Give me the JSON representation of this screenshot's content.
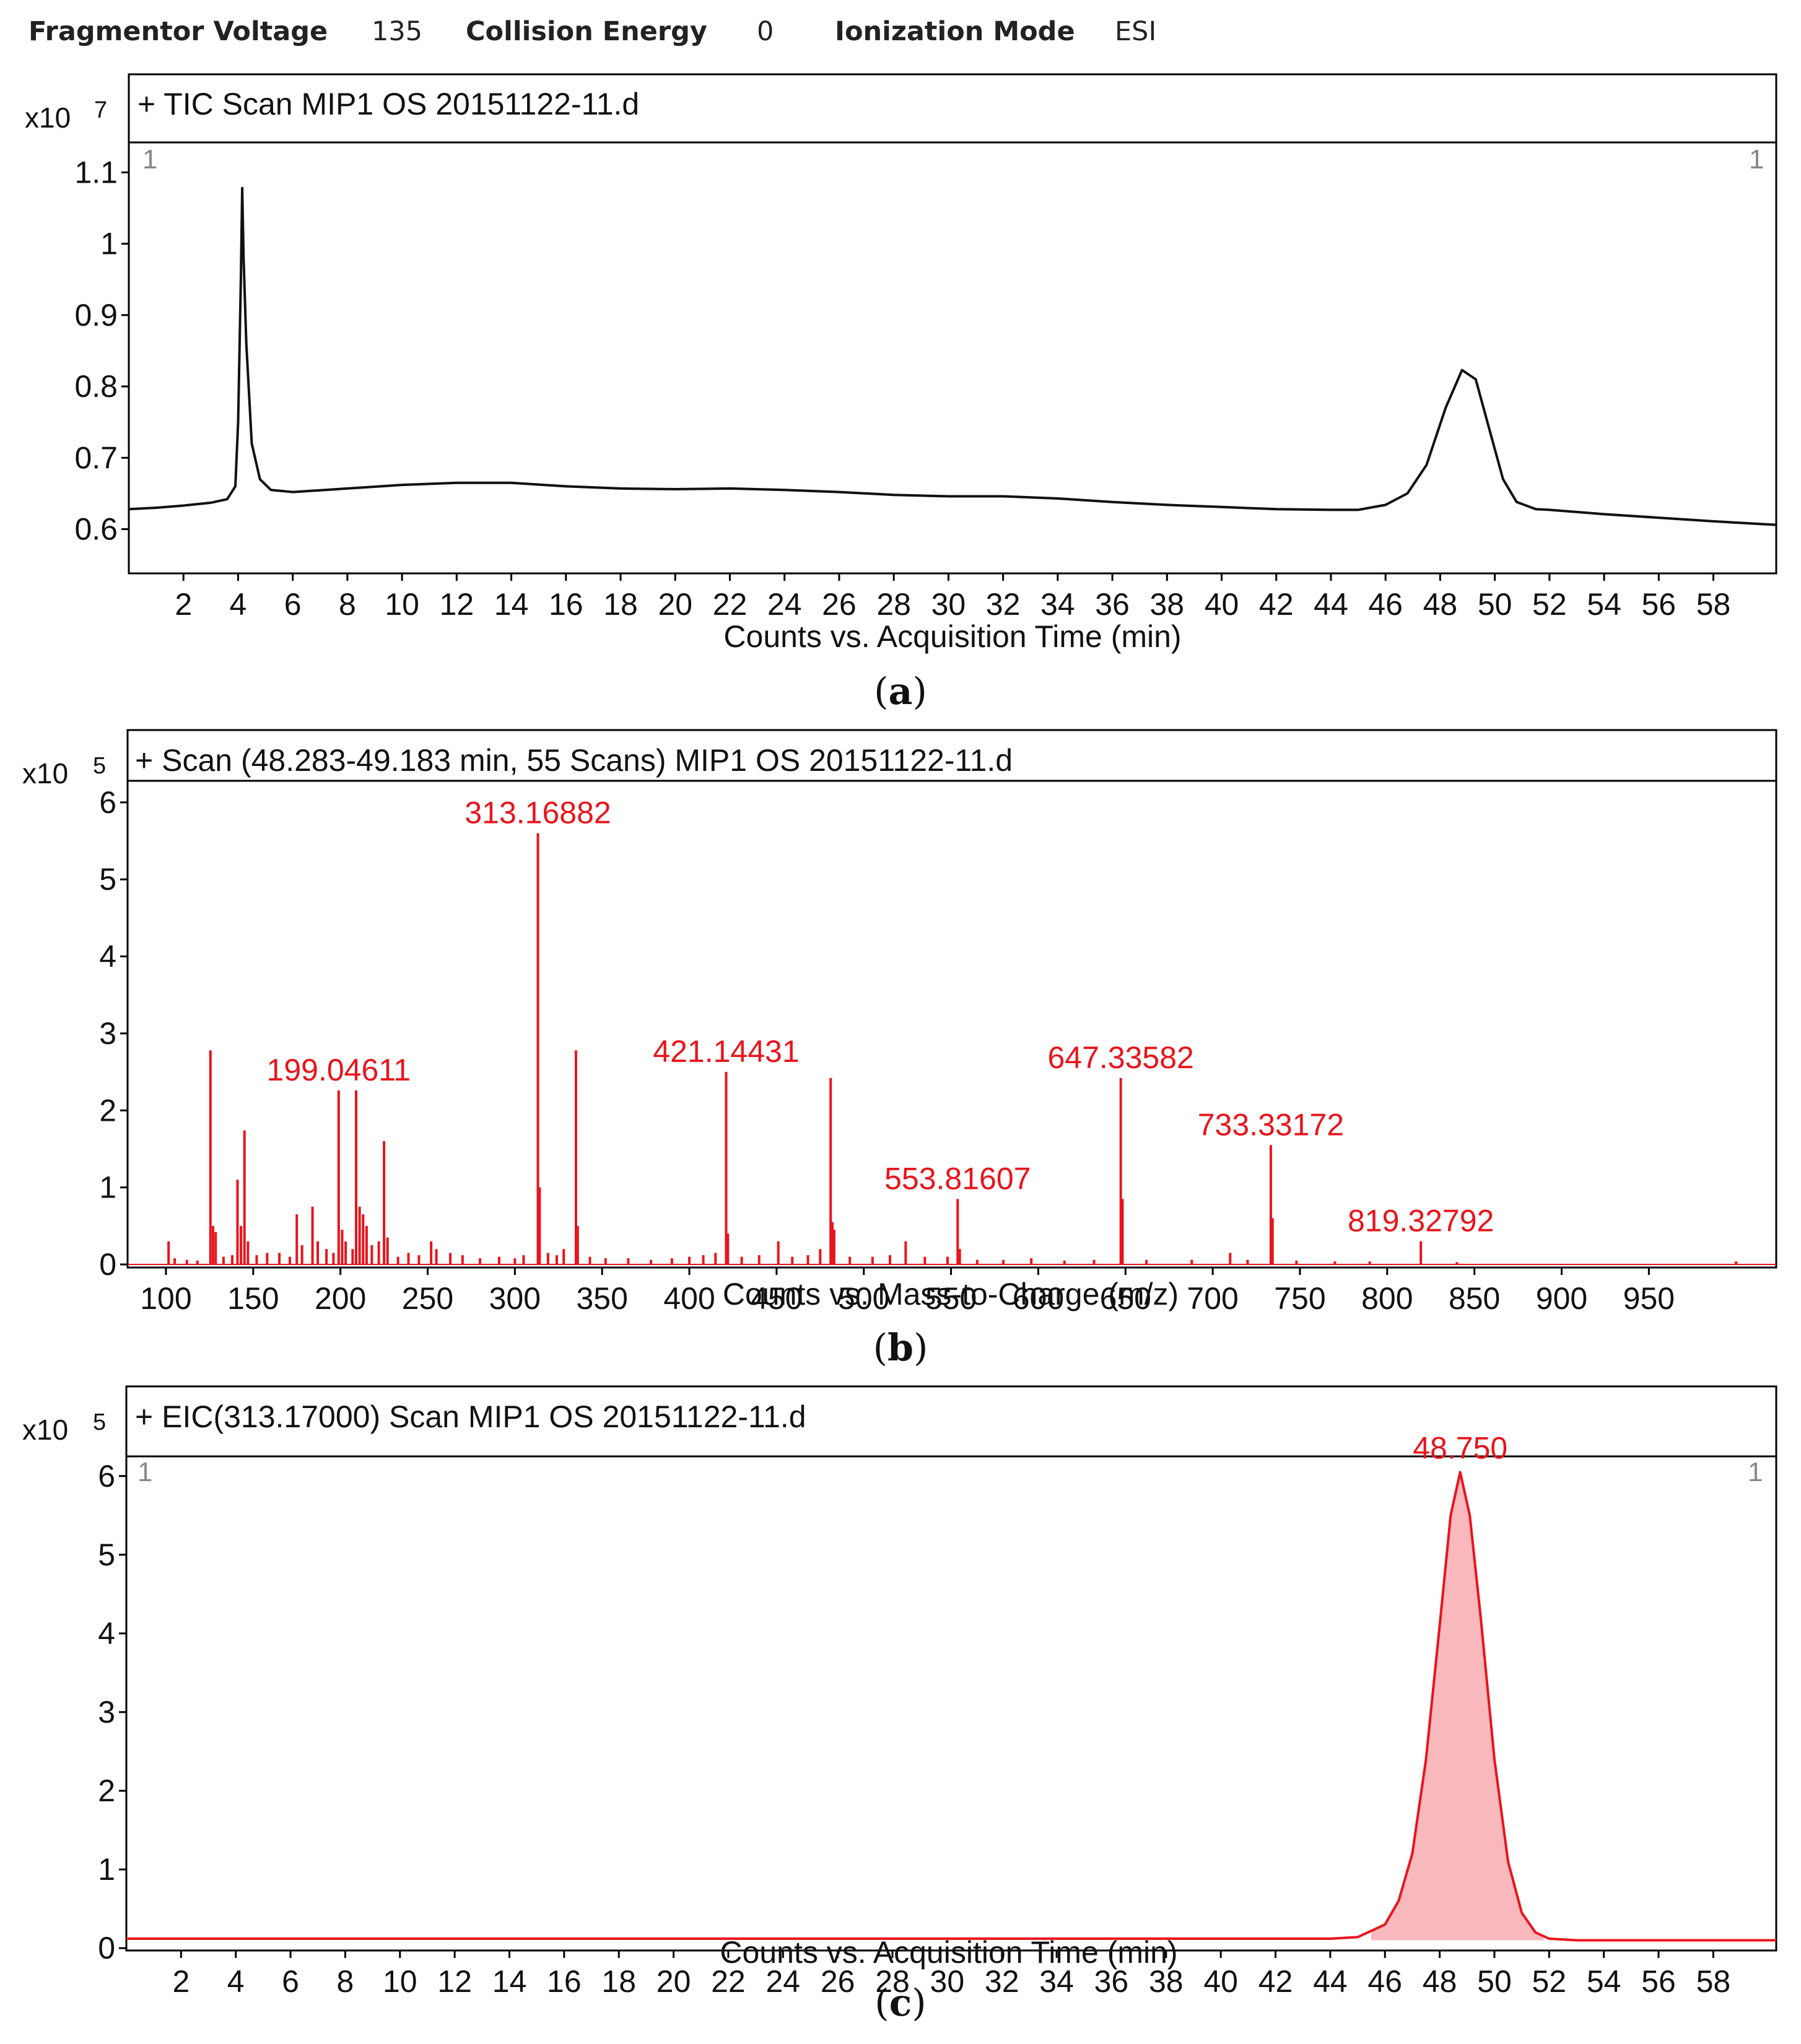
{
  "header": {
    "fragmentor_label": "Fragmentor Voltage",
    "fragmentor_value": "135",
    "collision_label": "Collision Energy",
    "collision_value": "0",
    "ionization_label": "Ionization Mode",
    "ionization_value": "ESI"
  },
  "captions": {
    "a": "a",
    "b": "b",
    "c": "c"
  },
  "colors": {
    "tic_line": "#111111",
    "spectrum": "#e8141c",
    "eic_fill": "#f8b8bc",
    "eic_line": "#e8141c"
  },
  "chart_data": [
    {
      "id": "a",
      "type": "line",
      "title": "+ TIC Scan MIP1 OS 20151122-11.d",
      "multiplier_base": "x10",
      "multiplier_exp": "7",
      "xlabel": "Counts vs. Acquisition Time (min)",
      "ylabel": "",
      "panel_index": "1",
      "xlim": [
        0,
        60.3
      ],
      "ylim": [
        0.538,
        1.142
      ],
      "x_ticks": [
        "2",
        "4",
        "6",
        "8",
        "10",
        "12",
        "14",
        "16",
        "18",
        "20",
        "22",
        "24",
        "26",
        "28",
        "30",
        "32",
        "34",
        "36",
        "38",
        "40",
        "42",
        "44",
        "46",
        "48",
        "50",
        "52",
        "54",
        "56",
        "58"
      ],
      "y_ticks": [
        "0.6",
        "0.7",
        "0.8",
        "0.9",
        "1",
        "1.1"
      ],
      "x": [
        0,
        1,
        2,
        3,
        3.6,
        3.9,
        4.0,
        4.1,
        4.15,
        4.2,
        4.3,
        4.5,
        4.8,
        5.2,
        6,
        8,
        10,
        12,
        14,
        16,
        18,
        20,
        22,
        24,
        26,
        28,
        30,
        32,
        34,
        36,
        38,
        40,
        42,
        44,
        45,
        46,
        46.8,
        47.5,
        48.2,
        48.8,
        49.3,
        49.8,
        50.3,
        50.8,
        51.5,
        52,
        54,
        56,
        58,
        60.3
      ],
      "y": [
        0.628,
        0.63,
        0.633,
        0.637,
        0.642,
        0.66,
        0.75,
        0.95,
        1.078,
        0.98,
        0.86,
        0.72,
        0.67,
        0.655,
        0.652,
        0.657,
        0.662,
        0.665,
        0.665,
        0.66,
        0.657,
        0.656,
        0.657,
        0.655,
        0.652,
        0.648,
        0.646,
        0.646,
        0.643,
        0.638,
        0.634,
        0.631,
        0.628,
        0.627,
        0.627,
        0.634,
        0.65,
        0.69,
        0.77,
        0.823,
        0.81,
        0.74,
        0.67,
        0.638,
        0.628,
        0.627,
        0.621,
        0.616,
        0.611,
        0.606
      ]
    },
    {
      "id": "b",
      "type": "bar",
      "title": "+ Scan (48.283-49.183 min, 55 Scans) MIP1 OS 20151122-11.d",
      "multiplier_base": "x10",
      "multiplier_exp": "5",
      "xlabel": "Counts vs. Mass-to-Charge (m/z)",
      "ylabel": "",
      "xlim": [
        78,
        1023
      ],
      "ylim": [
        -0.04,
        6.28
      ],
      "x_ticks": [
        "100",
        "150",
        "200",
        "250",
        "300",
        "350",
        "400",
        "450",
        "500",
        "550",
        "600",
        "650",
        "700",
        "750",
        "800",
        "850",
        "900",
        "950"
      ],
      "y_ticks": [
        "0",
        "1",
        "2",
        "3",
        "4",
        "5",
        "6"
      ],
      "peaks": [
        {
          "mz": 101.5,
          "value": 0.3
        },
        {
          "mz": 105,
          "value": 0.08
        },
        {
          "mz": 112,
          "value": 0.06
        },
        {
          "mz": 118,
          "value": 0.05
        },
        {
          "mz": 125.5,
          "value": 2.78
        },
        {
          "mz": 127,
          "value": 0.5
        },
        {
          "mz": 128.5,
          "value": 0.42
        },
        {
          "mz": 133,
          "value": 0.1
        },
        {
          "mz": 138,
          "value": 0.12
        },
        {
          "mz": 141,
          "value": 1.1
        },
        {
          "mz": 143,
          "value": 0.5
        },
        {
          "mz": 145,
          "value": 1.74
        },
        {
          "mz": 147,
          "value": 0.3
        },
        {
          "mz": 152,
          "value": 0.12
        },
        {
          "mz": 158,
          "value": 0.15
        },
        {
          "mz": 165,
          "value": 0.15
        },
        {
          "mz": 171,
          "value": 0.1
        },
        {
          "mz": 175,
          "value": 0.65
        },
        {
          "mz": 178,
          "value": 0.25
        },
        {
          "mz": 184,
          "value": 0.75
        },
        {
          "mz": 187,
          "value": 0.3
        },
        {
          "mz": 192,
          "value": 0.2
        },
        {
          "mz": 196,
          "value": 0.15
        },
        {
          "mz": 199,
          "value": 2.26
        },
        {
          "mz": 201,
          "value": 0.45
        },
        {
          "mz": 203,
          "value": 0.3
        },
        {
          "mz": 207,
          "value": 0.2
        },
        {
          "mz": 209,
          "value": 2.26
        },
        {
          "mz": 211,
          "value": 0.75
        },
        {
          "mz": 213,
          "value": 0.65
        },
        {
          "mz": 215,
          "value": 0.5
        },
        {
          "mz": 218,
          "value": 0.25
        },
        {
          "mz": 222,
          "value": 0.3
        },
        {
          "mz": 225,
          "value": 1.6
        },
        {
          "mz": 227,
          "value": 0.35
        },
        {
          "mz": 233,
          "value": 0.1
        },
        {
          "mz": 239,
          "value": 0.15
        },
        {
          "mz": 245,
          "value": 0.12
        },
        {
          "mz": 252,
          "value": 0.3
        },
        {
          "mz": 255,
          "value": 0.2
        },
        {
          "mz": 263,
          "value": 0.15
        },
        {
          "mz": 270,
          "value": 0.12
        },
        {
          "mz": 280,
          "value": 0.08
        },
        {
          "mz": 291,
          "value": 0.1
        },
        {
          "mz": 300,
          "value": 0.08
        },
        {
          "mz": 305,
          "value": 0.12
        },
        {
          "mz": 313.2,
          "value": 5.6
        },
        {
          "mz": 314.2,
          "value": 1.0
        },
        {
          "mz": 319,
          "value": 0.15
        },
        {
          "mz": 324,
          "value": 0.12
        },
        {
          "mz": 328,
          "value": 0.2
        },
        {
          "mz": 335,
          "value": 2.78
        },
        {
          "mz": 336,
          "value": 0.5
        },
        {
          "mz": 343,
          "value": 0.1
        },
        {
          "mz": 352,
          "value": 0.08
        },
        {
          "mz": 365,
          "value": 0.08
        },
        {
          "mz": 378,
          "value": 0.06
        },
        {
          "mz": 390,
          "value": 0.08
        },
        {
          "mz": 400,
          "value": 0.1
        },
        {
          "mz": 408,
          "value": 0.12
        },
        {
          "mz": 415,
          "value": 0.15
        },
        {
          "mz": 421.1,
          "value": 2.5
        },
        {
          "mz": 422.1,
          "value": 0.4
        },
        {
          "mz": 430,
          "value": 0.1
        },
        {
          "mz": 440,
          "value": 0.12
        },
        {
          "mz": 451,
          "value": 0.3
        },
        {
          "mz": 459,
          "value": 0.1
        },
        {
          "mz": 468,
          "value": 0.12
        },
        {
          "mz": 475,
          "value": 0.2
        },
        {
          "mz": 481,
          "value": 2.42
        },
        {
          "mz": 482,
          "value": 0.55
        },
        {
          "mz": 483,
          "value": 0.45
        },
        {
          "mz": 492,
          "value": 0.1
        },
        {
          "mz": 505,
          "value": 0.1
        },
        {
          "mz": 515,
          "value": 0.12
        },
        {
          "mz": 524,
          "value": 0.3
        },
        {
          "mz": 535,
          "value": 0.1
        },
        {
          "mz": 548,
          "value": 0.1
        },
        {
          "mz": 553.8,
          "value": 0.85
        },
        {
          "mz": 555,
          "value": 0.2
        },
        {
          "mz": 565,
          "value": 0.06
        },
        {
          "mz": 580,
          "value": 0.06
        },
        {
          "mz": 596,
          "value": 0.08
        },
        {
          "mz": 615,
          "value": 0.05
        },
        {
          "mz": 632,
          "value": 0.06
        },
        {
          "mz": 647.3,
          "value": 2.42
        },
        {
          "mz": 648.3,
          "value": 0.85
        },
        {
          "mz": 662,
          "value": 0.06
        },
        {
          "mz": 688,
          "value": 0.06
        },
        {
          "mz": 710,
          "value": 0.15
        },
        {
          "mz": 720,
          "value": 0.06
        },
        {
          "mz": 733.3,
          "value": 1.55
        },
        {
          "mz": 734.3,
          "value": 0.6
        },
        {
          "mz": 748,
          "value": 0.05
        },
        {
          "mz": 770,
          "value": 0.04
        },
        {
          "mz": 790,
          "value": 0.04
        },
        {
          "mz": 819.3,
          "value": 0.3
        },
        {
          "mz": 840,
          "value": 0.03
        },
        {
          "mz": 1000,
          "value": 0.04
        }
      ],
      "annotations": [
        {
          "label": "313.16882",
          "mz": 313.2,
          "value": 5.6
        },
        {
          "label": "199.04611",
          "mz": 199,
          "value": 2.26
        },
        {
          "label": "421.14431",
          "mz": 421.1,
          "value": 2.5
        },
        {
          "label": "647.33582",
          "mz": 647.3,
          "value": 2.42
        },
        {
          "label": "553.81607",
          "mz": 553.8,
          "value": 0.85
        },
        {
          "label": "733.33172",
          "mz": 733.3,
          "value": 1.55
        },
        {
          "label": "819.32792",
          "mz": 819.3,
          "value": 0.3
        }
      ]
    },
    {
      "id": "c",
      "type": "area",
      "title": "+ EIC(313.17000) Scan MIP1 OS 20151122-11.d",
      "multiplier_base": "x10",
      "multiplier_exp": "5",
      "xlabel": "Counts vs. Acquisition Time (min)",
      "ylabel": "",
      "panel_index": "1",
      "xlim": [
        0,
        60.3
      ],
      "ylim": [
        -0.03,
        6.25
      ],
      "x_ticks": [
        "2",
        "4",
        "6",
        "8",
        "10",
        "12",
        "14",
        "16",
        "18",
        "20",
        "22",
        "24",
        "26",
        "28",
        "30",
        "32",
        "34",
        "36",
        "38",
        "40",
        "42",
        "44",
        "46",
        "48",
        "50",
        "52",
        "54",
        "56",
        "58"
      ],
      "y_ticks": [
        "0",
        "1",
        "2",
        "3",
        "4",
        "5",
        "6"
      ],
      "x": [
        0,
        10,
        20,
        30,
        40,
        44,
        45,
        46,
        46.5,
        47,
        47.5,
        48,
        48.4,
        48.75,
        49.1,
        49.5,
        50,
        50.5,
        51,
        51.5,
        52,
        53,
        60.3
      ],
      "y": [
        0.12,
        0.12,
        0.12,
        0.12,
        0.12,
        0.12,
        0.14,
        0.3,
        0.6,
        1.2,
        2.4,
        4.1,
        5.5,
        6.05,
        5.5,
        4.2,
        2.4,
        1.1,
        0.45,
        0.2,
        0.12,
        0.1,
        0.1
      ],
      "peak_annotation": {
        "label": "48.750",
        "x": 48.75,
        "value": 6.05
      }
    }
  ]
}
